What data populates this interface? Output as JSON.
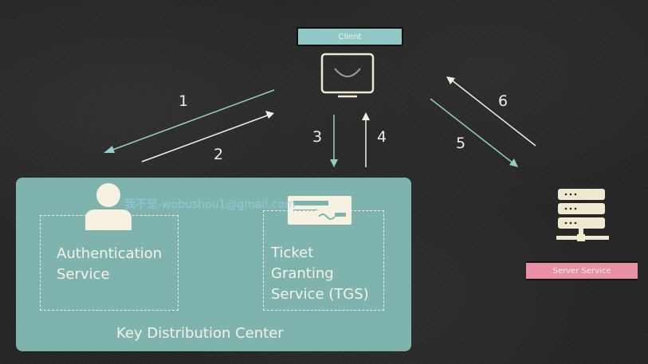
{
  "client": {
    "label": "Client"
  },
  "server": {
    "label": "Server Service"
  },
  "arrows": {
    "n1": "1",
    "n2": "2",
    "n3": "3",
    "n4": "4",
    "n5": "5",
    "n6": "6"
  },
  "kdc": {
    "title": "Key Distribution Center",
    "auth_line1": "Authentication",
    "auth_line2": "Service",
    "tgs_line1": "Ticket",
    "tgs_line2": "Granting",
    "tgs_line3": "Service (TGS)"
  },
  "watermark": "我不是-wobushou1@gmail.com",
  "colors": {
    "teal": "#7fb3ae",
    "pink": "#e890a6",
    "cream": "#f4f1e4",
    "arrow": "#8fcfc6"
  }
}
